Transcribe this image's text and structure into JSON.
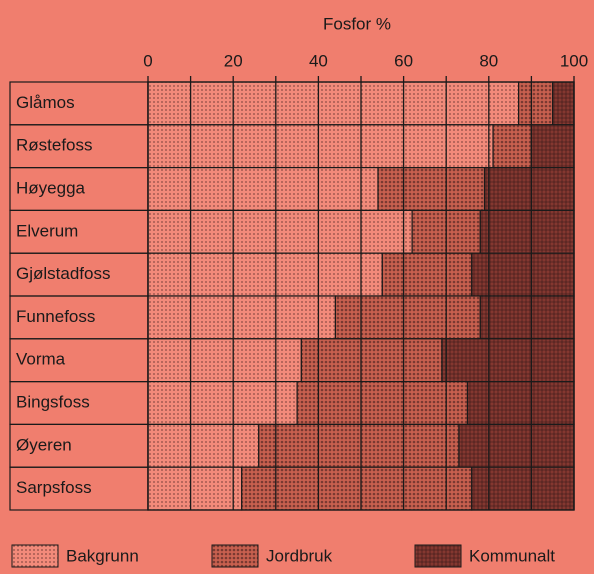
{
  "chart_data": {
    "type": "stacked-barh",
    "title": "Fosfor %",
    "categories": [
      "Glåmos",
      "Røstefoss",
      "Høyegga",
      "Elverum",
      "Gjølstadfoss",
      "Funnefoss",
      "Vorma",
      "Bingsfoss",
      "Øyeren",
      "Sarpsfoss"
    ],
    "series": [
      {
        "name": "Bakgrunn",
        "color": "#f28a7a",
        "values": [
          87,
          81,
          54,
          62,
          55,
          44,
          36,
          35,
          26,
          22
        ]
      },
      {
        "name": "Jordbruk",
        "color": "#c8604f",
        "values": [
          8,
          9,
          25,
          16,
          21,
          34,
          33,
          40,
          47,
          54
        ]
      },
      {
        "name": "Kommunalt",
        "color": "#8a3a32",
        "values": [
          5,
          10,
          21,
          22,
          24,
          22,
          31,
          25,
          27,
          24
        ]
      }
    ],
    "xlim": [
      0,
      100
    ],
    "xticks": [
      0,
      20,
      40,
      60,
      80,
      100
    ],
    "minor_xticks": [
      10,
      30,
      50,
      70,
      90
    ],
    "grid": true
  }
}
